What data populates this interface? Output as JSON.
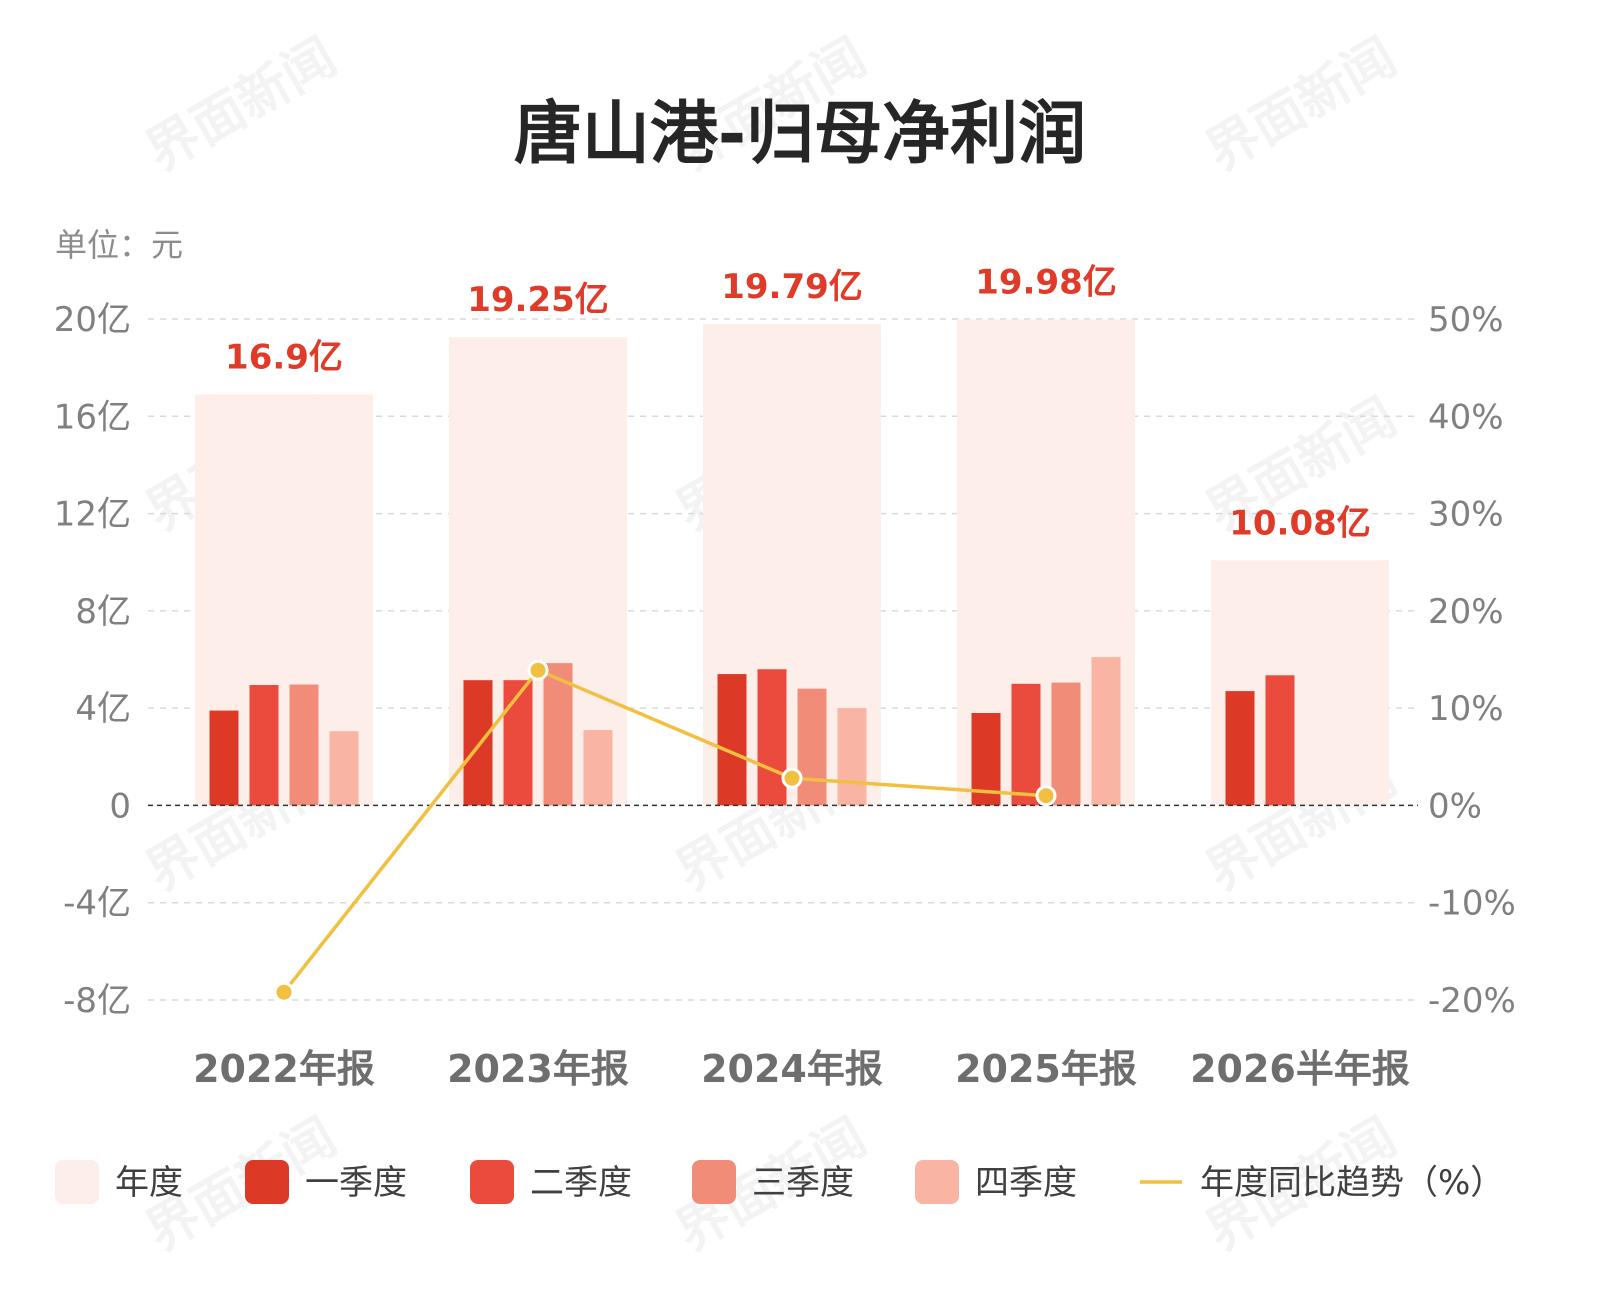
{
  "colors": {
    "annual": "#fdeeea",
    "q1": "#dc3a26",
    "q2": "#ea4b3c",
    "q3": "#f08c78",
    "q4": "#f9b4a4",
    "trend": "#f2c041",
    "label": "#e03a28"
  },
  "watermark": "界面新闻",
  "chart_data": {
    "type": "bar",
    "title": "唐山港-归母净利润",
    "unit_label": "单位：元",
    "categories": [
      "2022年报",
      "2023年报",
      "2024年报",
      "2025年报",
      "2026半年报"
    ],
    "annual": {
      "name": "年度",
      "values": [
        16.9,
        19.25,
        19.79,
        19.98,
        10.08
      ],
      "labels": [
        "16.9亿",
        "19.25亿",
        "19.79亿",
        "19.98亿",
        "10.08亿"
      ]
    },
    "series": [
      {
        "name": "一季度",
        "color_key": "q1",
        "values": [
          3.9,
          5.15,
          5.4,
          3.8,
          4.7
        ]
      },
      {
        "name": "二季度",
        "color_key": "q2",
        "values": [
          4.95,
          5.15,
          5.6,
          5.0,
          5.35
        ]
      },
      {
        "name": "三季度",
        "color_key": "q3",
        "values": [
          4.97,
          5.85,
          4.8,
          5.05,
          null
        ]
      },
      {
        "name": "四季度",
        "color_key": "q4",
        "values": [
          3.05,
          3.1,
          4.0,
          6.1,
          null
        ]
      }
    ],
    "trend": {
      "name": "年度同比趋势（%）",
      "values": [
        -19.2,
        13.9,
        2.8,
        1.0,
        null
      ]
    },
    "y_left": {
      "lim": [
        -8,
        20
      ],
      "ticks": [
        -8,
        -4,
        0,
        4,
        8,
        12,
        16,
        20
      ],
      "tick_labels": [
        "-8亿",
        "-4亿",
        "0",
        "4亿",
        "8亿",
        "12亿",
        "16亿",
        "20亿"
      ]
    },
    "y_right": {
      "lim": [
        -20,
        50
      ],
      "ticks": [
        -20,
        -10,
        0,
        10,
        20,
        30,
        40,
        50
      ],
      "tick_labels": [
        "-20%",
        "-10%",
        "0%",
        "10%",
        "20%",
        "30%",
        "40%",
        "50%"
      ]
    },
    "grid": true,
    "legend": {
      "position": "bottom",
      "items": [
        {
          "label": "年度",
          "color_key": "annual",
          "kind": "box"
        },
        {
          "label": "一季度",
          "color_key": "q1",
          "kind": "box"
        },
        {
          "label": "二季度",
          "color_key": "q2",
          "kind": "box"
        },
        {
          "label": "三季度",
          "color_key": "q3",
          "kind": "box"
        },
        {
          "label": "四季度",
          "color_key": "q4",
          "kind": "box"
        },
        {
          "label": "年度同比趋势（%）",
          "color_key": "trend",
          "kind": "line"
        }
      ]
    }
  }
}
